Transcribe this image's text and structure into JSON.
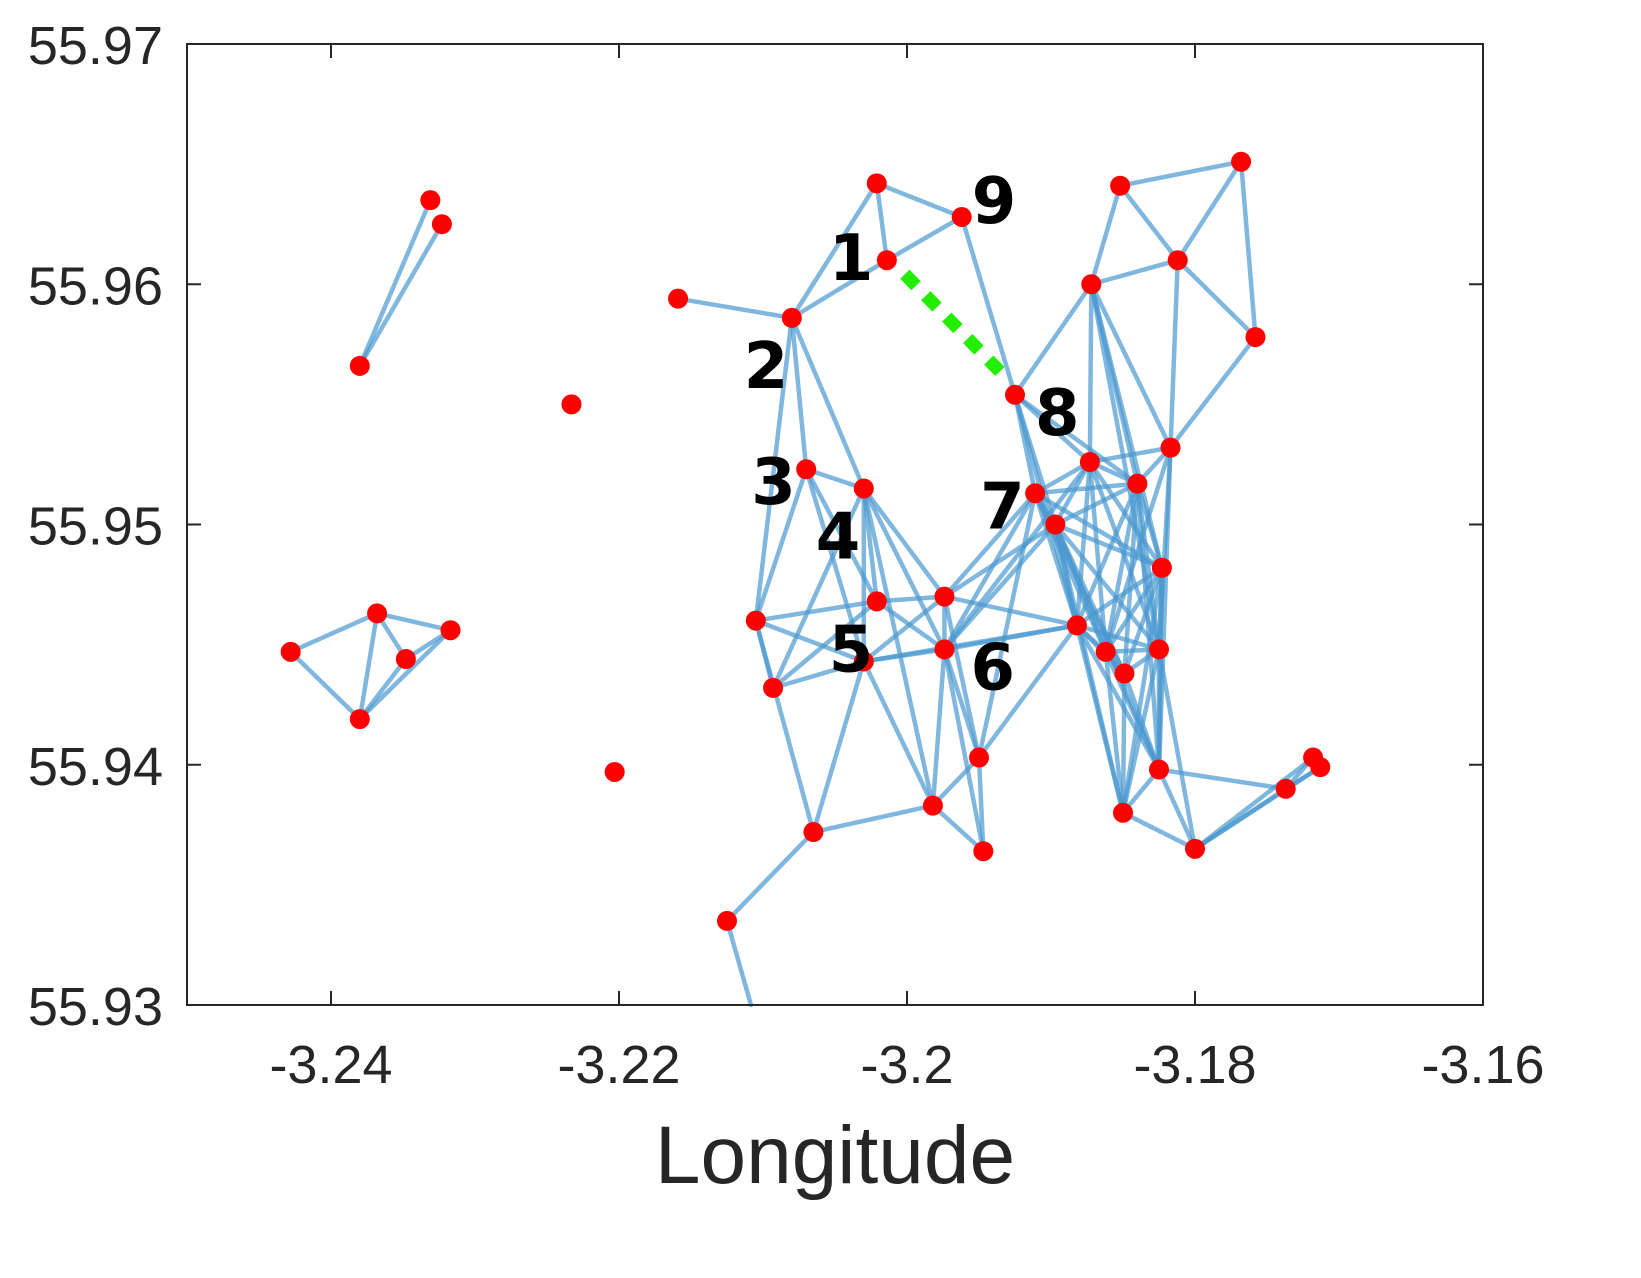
{
  "chart_data": {
    "type": "scatter",
    "xlabel": "Longitude",
    "ylabel": "",
    "xlim": [
      -3.25,
      -3.16
    ],
    "ylim": [
      55.93,
      55.97
    ],
    "xticks": [
      -3.24,
      -3.22,
      -3.2,
      -3.18,
      -3.16
    ],
    "xtick_labels": [
      "-3.24",
      "-3.22",
      "-3.2",
      "-3.18",
      "-3.16"
    ],
    "yticks": [
      55.93,
      55.94,
      55.95,
      55.96,
      55.97
    ],
    "ytick_labels": [
      "55.93",
      "55.94",
      "55.95",
      "55.96",
      "55.97"
    ],
    "grid": false,
    "colors": {
      "node": "#ff0000",
      "edge": "#4a98d0",
      "highlight": "#22ee00"
    },
    "nodes": [
      {
        "id": "A1",
        "x": -3.2331,
        "y": 55.9635
      },
      {
        "id": "A2",
        "x": -3.2323,
        "y": 55.9625
      },
      {
        "id": "A3",
        "x": -3.238,
        "y": 55.9566
      },
      {
        "id": "B1",
        "x": -3.2428,
        "y": 55.9447
      },
      {
        "id": "B2",
        "x": -3.2368,
        "y": 55.9463
      },
      {
        "id": "B3",
        "x": -3.2317,
        "y": 55.9456
      },
      {
        "id": "B4",
        "x": -3.2348,
        "y": 55.9444
      },
      {
        "id": "B5",
        "x": -3.238,
        "y": 55.9419
      },
      {
        "id": "I1",
        "x": -3.2233,
        "y": 55.955
      },
      {
        "id": "I2",
        "x": -3.2203,
        "y": 55.9397
      },
      {
        "id": "n1",
        "label": "1",
        "x": -3.2014,
        "y": 55.961
      },
      {
        "id": "n2",
        "label": "2",
        "x": -3.208,
        "y": 55.9586
      },
      {
        "id": "n3",
        "label": "3",
        "x": -3.207,
        "y": 55.9523
      },
      {
        "id": "n4",
        "label": "4",
        "x": -3.203,
        "y": 55.9515
      },
      {
        "id": "n5",
        "label": "5",
        "x": -3.2021,
        "y": 55.9468
      },
      {
        "id": "n6",
        "label": "6",
        "x": -3.1974,
        "y": 55.9448
      },
      {
        "id": "n7",
        "label": "7",
        "x": -3.1911,
        "y": 55.9513
      },
      {
        "id": "n8",
        "label": "8",
        "x": -3.1925,
        "y": 55.9554
      },
      {
        "id": "n9",
        "label": "9",
        "x": -3.1962,
        "y": 55.9628
      },
      {
        "id": "c1",
        "x": -3.2021,
        "y": 55.9642
      },
      {
        "id": "c2",
        "x": -3.2159,
        "y": 55.9594
      },
      {
        "id": "c3",
        "x": -3.1897,
        "y": 55.95
      },
      {
        "id": "c4",
        "x": -3.1873,
        "y": 55.9526
      },
      {
        "id": "c5",
        "x": -3.184,
        "y": 55.9517
      },
      {
        "id": "c6",
        "x": -3.1817,
        "y": 55.9532
      },
      {
        "id": "c7",
        "x": -3.1823,
        "y": 55.9482
      },
      {
        "id": "c8",
        "x": -3.1974,
        "y": 55.947
      },
      {
        "id": "c9",
        "x": -3.1882,
        "y": 55.9458
      },
      {
        "id": "c10",
        "x": -3.1862,
        "y": 55.9447
      },
      {
        "id": "c11",
        "x": -3.1849,
        "y": 55.9438
      },
      {
        "id": "c12",
        "x": -3.1825,
        "y": 55.9448
      },
      {
        "id": "c13",
        "x": -3.2105,
        "y": 55.946
      },
      {
        "id": "c14",
        "x": -3.2093,
        "y": 55.9432
      },
      {
        "id": "c15",
        "x": -3.203,
        "y": 55.9443
      },
      {
        "id": "c16",
        "x": -3.195,
        "y": 55.9403
      },
      {
        "id": "c17",
        "x": -3.1982,
        "y": 55.9383
      },
      {
        "id": "c18",
        "x": -3.1947,
        "y": 55.9364
      },
      {
        "id": "c19",
        "x": -3.2065,
        "y": 55.9372
      },
      {
        "id": "c20",
        "x": -3.2125,
        "y": 55.9335
      },
      {
        "id": "c21",
        "x": -3.1825,
        "y": 55.9398
      },
      {
        "id": "c22",
        "x": -3.185,
        "y": 55.938
      },
      {
        "id": "c23",
        "x": -3.18,
        "y": 55.9365
      },
      {
        "id": "c24",
        "x": -3.1737,
        "y": 55.939
      },
      {
        "id": "c25",
        "x": -3.1718,
        "y": 55.9403
      },
      {
        "id": "c26",
        "x": -3.1713,
        "y": 55.9399
      },
      {
        "id": "c27",
        "x": -3.1872,
        "y": 55.96
      },
      {
        "id": "c28",
        "x": -3.1852,
        "y": 55.9641
      },
      {
        "id": "c29",
        "x": -3.1812,
        "y": 55.961
      },
      {
        "id": "c30",
        "x": -3.1768,
        "y": 55.9651
      },
      {
        "id": "c31",
        "x": -3.1758,
        "y": 55.9578
      }
    ],
    "edges": [
      [
        "A1",
        "A3"
      ],
      [
        "A2",
        "A3"
      ],
      [
        "B1",
        "B2"
      ],
      [
        "B1",
        "B5"
      ],
      [
        "B2",
        "B3"
      ],
      [
        "B2",
        "B4"
      ],
      [
        "B2",
        "B5"
      ],
      [
        "B3",
        "B4"
      ],
      [
        "B3",
        "B5"
      ],
      [
        "B4",
        "B5"
      ],
      [
        "c2",
        "n2"
      ],
      [
        "n2",
        "n1"
      ],
      [
        "n2",
        "c1"
      ],
      [
        "c1",
        "n1"
      ],
      [
        "c1",
        "n9"
      ],
      [
        "n1",
        "n9"
      ],
      [
        "n9",
        "n8"
      ],
      [
        "n2",
        "n3"
      ],
      [
        "n2",
        "n4"
      ],
      [
        "n2",
        "c13"
      ],
      [
        "n3",
        "n4"
      ],
      [
        "n3",
        "c13"
      ],
      [
        "n3",
        "n5"
      ],
      [
        "n3",
        "c15"
      ],
      [
        "n4",
        "n5"
      ],
      [
        "n4",
        "c15"
      ],
      [
        "n4",
        "c8"
      ],
      [
        "n4",
        "n6"
      ],
      [
        "n4",
        "c17"
      ],
      [
        "n4",
        "c14"
      ],
      [
        "c13",
        "n5"
      ],
      [
        "c13",
        "c14"
      ],
      [
        "c13",
        "c15"
      ],
      [
        "c13",
        "c19"
      ],
      [
        "c14",
        "n5"
      ],
      [
        "c14",
        "c15"
      ],
      [
        "n5",
        "c8"
      ],
      [
        "n5",
        "n6"
      ],
      [
        "c15",
        "c8"
      ],
      [
        "c15",
        "n6"
      ],
      [
        "c15",
        "c19"
      ],
      [
        "c15",
        "c17"
      ],
      [
        "c15",
        "c9"
      ],
      [
        "c19",
        "c17"
      ],
      [
        "c19",
        "c20"
      ],
      [
        "c20",
        "c20b"
      ],
      [
        "c8",
        "n7"
      ],
      [
        "c8",
        "c3"
      ],
      [
        "c8",
        "n6"
      ],
      [
        "c8",
        "c9"
      ],
      [
        "c8",
        "c16"
      ],
      [
        "n6",
        "c17"
      ],
      [
        "n6",
        "c16"
      ],
      [
        "n6",
        "c18"
      ],
      [
        "n6",
        "n7"
      ],
      [
        "n6",
        "c3"
      ],
      [
        "n6",
        "c9"
      ],
      [
        "n6",
        "c4"
      ],
      [
        "c17",
        "c18"
      ],
      [
        "c16",
        "c9"
      ],
      [
        "c16",
        "n7"
      ],
      [
        "c16",
        "c18"
      ],
      [
        "c17",
        "c16"
      ],
      [
        "n8",
        "n7"
      ],
      [
        "n8",
        "c4"
      ],
      [
        "n8",
        "c3"
      ],
      [
        "n8",
        "c5"
      ],
      [
        "n8",
        "c27"
      ],
      [
        "n8",
        "c9"
      ],
      [
        "n7",
        "c3"
      ],
      [
        "n7",
        "c4"
      ],
      [
        "n7",
        "c5"
      ],
      [
        "n7",
        "c7"
      ],
      [
        "n7",
        "c9"
      ],
      [
        "n7",
        "c10"
      ],
      [
        "n7",
        "c11"
      ],
      [
        "c3",
        "c4"
      ],
      [
        "c3",
        "c5"
      ],
      [
        "c3",
        "c7"
      ],
      [
        "c3",
        "c9"
      ],
      [
        "c3",
        "c10"
      ],
      [
        "c3",
        "c11"
      ],
      [
        "c3",
        "c12"
      ],
      [
        "c3",
        "c21"
      ],
      [
        "c3",
        "c22"
      ],
      [
        "c4",
        "c5"
      ],
      [
        "c4",
        "c6"
      ],
      [
        "c4",
        "c7"
      ],
      [
        "c4",
        "c9"
      ],
      [
        "c4",
        "c10"
      ],
      [
        "c4",
        "c12"
      ],
      [
        "c4",
        "c27"
      ],
      [
        "c5",
        "c7"
      ],
      [
        "c5",
        "c9"
      ],
      [
        "c5",
        "c10"
      ],
      [
        "c5",
        "c11"
      ],
      [
        "c5",
        "c12"
      ],
      [
        "c5",
        "c21"
      ],
      [
        "c5",
        "c6"
      ],
      [
        "c6",
        "c29"
      ],
      [
        "c6",
        "c31"
      ],
      [
        "c6",
        "c27"
      ],
      [
        "c6",
        "c10"
      ],
      [
        "c6",
        "c12"
      ],
      [
        "c6",
        "c21"
      ],
      [
        "c7",
        "c9"
      ],
      [
        "c7",
        "c10"
      ],
      [
        "c7",
        "c11"
      ],
      [
        "c7",
        "c12"
      ],
      [
        "c7",
        "c21"
      ],
      [
        "c7",
        "c22"
      ],
      [
        "c9",
        "c10"
      ],
      [
        "c9",
        "c11"
      ],
      [
        "c9",
        "c12"
      ],
      [
        "c9",
        "c21"
      ],
      [
        "c9",
        "c22"
      ],
      [
        "c10",
        "c11"
      ],
      [
        "c10",
        "c12"
      ],
      [
        "c10",
        "c21"
      ],
      [
        "c10",
        "c22"
      ],
      [
        "c11",
        "c12"
      ],
      [
        "c11",
        "c21"
      ],
      [
        "c11",
        "c22"
      ],
      [
        "c12",
        "c21"
      ],
      [
        "c12",
        "c22"
      ],
      [
        "c12",
        "c23"
      ],
      [
        "c21",
        "c22"
      ],
      [
        "c21",
        "c23"
      ],
      [
        "c21",
        "c24"
      ],
      [
        "c22",
        "c23"
      ],
      [
        "c23",
        "c24"
      ],
      [
        "c23",
        "c25"
      ],
      [
        "c23",
        "c26"
      ],
      [
        "c24",
        "c25"
      ],
      [
        "c24",
        "c26"
      ],
      [
        "c25",
        "c26"
      ],
      [
        "c27",
        "c28"
      ],
      [
        "c27",
        "c29"
      ],
      [
        "c27",
        "c12"
      ],
      [
        "c27",
        "c7"
      ],
      [
        "c27",
        "c5"
      ],
      [
        "c28",
        "c29"
      ],
      [
        "c28",
        "c30"
      ],
      [
        "c29",
        "c30"
      ],
      [
        "c29",
        "c31"
      ],
      [
        "c30",
        "c31"
      ]
    ],
    "highlight_edges": [
      [
        "n1",
        "n8"
      ]
    ],
    "labels": [
      {
        "node": "n1",
        "text": "1",
        "anchor": "upper-left"
      },
      {
        "node": "n2",
        "text": "2",
        "anchor": "lower-left"
      },
      {
        "node": "n3",
        "text": "3",
        "anchor": "left"
      },
      {
        "node": "n4",
        "text": "4",
        "anchor": "lower-left"
      },
      {
        "node": "n5",
        "text": "5",
        "anchor": "lower-left"
      },
      {
        "node": "n6",
        "text": "6",
        "anchor": "right"
      },
      {
        "node": "n7",
        "text": "7",
        "anchor": "left"
      },
      {
        "node": "n8",
        "text": "8",
        "anchor": "lower-right"
      },
      {
        "node": "n9",
        "text": "9",
        "anchor": "upper-right"
      }
    ]
  }
}
